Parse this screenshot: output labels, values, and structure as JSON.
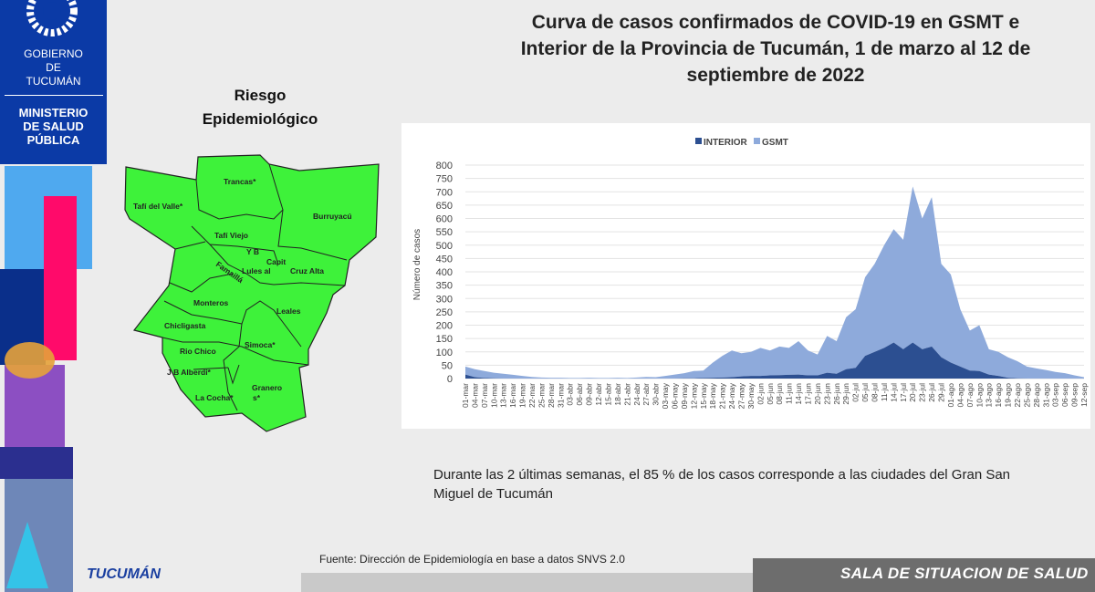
{
  "header": {
    "logo": {
      "line1": "GOBIERNO",
      "line2": "DE",
      "line3": "TUCUMÁN"
    },
    "ministry": {
      "line1": "MINISTERIO",
      "line2": "DE SALUD",
      "line3": "PÚBLICA"
    }
  },
  "title": {
    "line1": "Curva de casos confirmados de COVID-19 en GSMT e",
    "line2": "Interior de la Provincia de Tucumán, 1 de marzo al 12 de",
    "line3": "septiembre de 2022"
  },
  "map": {
    "title_line1": "Riesgo",
    "title_line2": "Epidemiológico",
    "fill_color": "#3ef23a",
    "departments": [
      "Trancas*",
      "Tafí del Valle*",
      "Burruyacú",
      "Tafí Viejo",
      "Y B",
      "Capit",
      "Lules al",
      "Cruz Alta",
      "Famaillá",
      "Monteros",
      "Leales",
      "Chicligasta",
      "Simoca*",
      "Rio Chico",
      "J B Alberdi*",
      "La Cocha*",
      "Granero",
      "s*"
    ]
  },
  "chart_data": {
    "type": "area",
    "stacked": true,
    "title": "",
    "xlabel": "",
    "ylabel": "Número de casos",
    "ylim": [
      0,
      800
    ],
    "yticks": [
      0,
      50,
      100,
      150,
      200,
      250,
      300,
      350,
      400,
      450,
      500,
      550,
      600,
      650,
      700,
      750,
      800
    ],
    "grid": true,
    "legend": "top",
    "x": [
      "01-mar",
      "04-mar",
      "07-mar",
      "10-mar",
      "13-mar",
      "16-mar",
      "19-mar",
      "22-mar",
      "25-mar",
      "28-mar",
      "31-mar",
      "03-abr",
      "06-abr",
      "09-abr",
      "12-abr",
      "15-abr",
      "18-abr",
      "21-abr",
      "24-abr",
      "27-abr",
      "30-abr",
      "03-may",
      "06-may",
      "09-may",
      "12-may",
      "15-may",
      "18-may",
      "21-may",
      "24-may",
      "27-may",
      "30-may",
      "02-jun",
      "05-jun",
      "08-jun",
      "11-jun",
      "14-jun",
      "17-jun",
      "20-jun",
      "23-jun",
      "26-jun",
      "29-jun",
      "02-jul",
      "05-jul",
      "08-jul",
      "11-jul",
      "14-jul",
      "17-jul",
      "20-jul",
      "23-jul",
      "26-jul",
      "29-jul",
      "01-ago",
      "04-ago",
      "07-ago",
      "10-ago",
      "13-ago",
      "16-ago",
      "19-ago",
      "22-ago",
      "25-ago",
      "28-ago",
      "31-ago",
      "03-sep",
      "06-sep",
      "09-sep",
      "12-sep"
    ],
    "series": [
      {
        "name": "INTERIOR",
        "color": "#2c4f91",
        "values": [
          15,
          5,
          2,
          1,
          0,
          0,
          0,
          0,
          0,
          0,
          0,
          0,
          0,
          0,
          0,
          0,
          0,
          0,
          0,
          0,
          0,
          0,
          0,
          1,
          1,
          2,
          3,
          4,
          5,
          8,
          10,
          10,
          12,
          13,
          14,
          15,
          12,
          12,
          22,
          18,
          35,
          40,
          85,
          100,
          115,
          135,
          110,
          135,
          110,
          120,
          80,
          60,
          45,
          30,
          28,
          15,
          10,
          3,
          1,
          0,
          0,
          0,
          0,
          0,
          0,
          0
        ]
      },
      {
        "name": "GSMT",
        "color": "#8eaadb",
        "values": [
          30,
          30,
          26,
          21,
          18,
          14,
          10,
          6,
          4,
          3,
          3,
          2,
          2,
          3,
          2,
          2,
          3,
          2,
          4,
          6,
          5,
          10,
          15,
          19,
          27,
          28,
          57,
          81,
          100,
          87,
          90,
          105,
          93,
          107,
          101,
          125,
          93,
          78,
          138,
          122,
          195,
          220,
          295,
          330,
          385,
          425,
          410,
          585,
          490,
          560,
          350,
          330,
          215,
          150,
          172,
          95,
          90,
          77,
          64,
          45,
          38,
          32,
          25,
          20,
          12,
          5
        ]
      }
    ]
  },
  "note": "Durante las 2 últimas semanas, el 85 % de los casos corresponde a las ciudades del Gran San Miguel de Tucumán",
  "source": "Fuente: Dirección de Epidemiología en base a datos SNVS 2.0",
  "footer": {
    "brand": "TUCUMÁN",
    "banner": "SALA DE SITUACION DE SALUD"
  }
}
